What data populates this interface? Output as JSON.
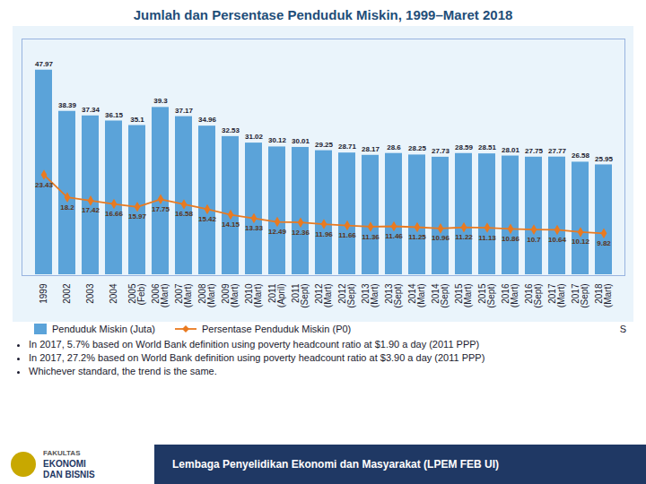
{
  "chart_data": {
    "type": "bar",
    "title": "Jumlah dan Persentase Penduduk Miskin, 1999–Maret 2018",
    "categories": [
      "1999",
      "2002",
      "2003",
      "2004",
      "2005\n(Feb)",
      "2006\n(Mart)",
      "2007\n(Mart)",
      "2008\n(Mart)",
      "2009\n(Mart)",
      "2010\n(Mart)",
      "2011\n(April)",
      "2011\n(Sept)",
      "2012\n(Mart)",
      "2012\n(Sept)",
      "2013\n(Mart)",
      "2013\n(Sept)",
      "2014\n(Mart)",
      "2014\n(Sept)",
      "2015\n(Mart)",
      "2015\n(Sept)",
      "2016\n(Mart)",
      "2016\n(Sept)",
      "2017\n(Mart)",
      "2017\n(Sept)",
      "2018\n(Mart)"
    ],
    "series": [
      {
        "name": "Penduduk Miskin (Juta)",
        "type": "bar",
        "color": "#5BA3D9",
        "values": [
          47.97,
          38.39,
          37.34,
          36.15,
          35.1,
          39.3,
          37.17,
          34.96,
          32.53,
          31.02,
          30.12,
          30.01,
          29.25,
          28.71,
          28.17,
          28.6,
          28.25,
          27.73,
          28.59,
          28.51,
          28.01,
          27.75,
          27.77,
          26.58,
          25.95
        ]
      },
      {
        "name": "Persentase Penduduk Miskin (P0)",
        "type": "line",
        "color": "#E97A20",
        "marker": "diamond",
        "values": [
          23.43,
          18.2,
          17.42,
          16.66,
          15.97,
          17.75,
          16.58,
          15.42,
          14.15,
          13.33,
          12.49,
          12.36,
          11.96,
          11.66,
          11.36,
          11.46,
          11.25,
          10.96,
          11.22,
          11.13,
          10.86,
          10.7,
          10.64,
          10.12,
          9.82
        ]
      }
    ],
    "ylim": [
      0,
      55
    ],
    "grid": false,
    "legend": "bottom",
    "data_labels": true,
    "tick_labels": "x",
    "annotations": [
      "S",
      "In 2017, 5.7% based on World Bank definition using poverty headcount ratio at $1.90 a day (2011 PPP)",
      "In 2017, 27.2% based on World Bank definition using poverty headcount ratio at $3.90 a day (2011 PPP)",
      "Whichever standard, the trend is the same.",
      "FAKULTAS",
      "EKONOMI",
      "DAN BISNIS",
      "Lembaga Penyelidikan Ekonomi dan Masyarakat (LPEM FEB UI)"
    ]
  }
}
